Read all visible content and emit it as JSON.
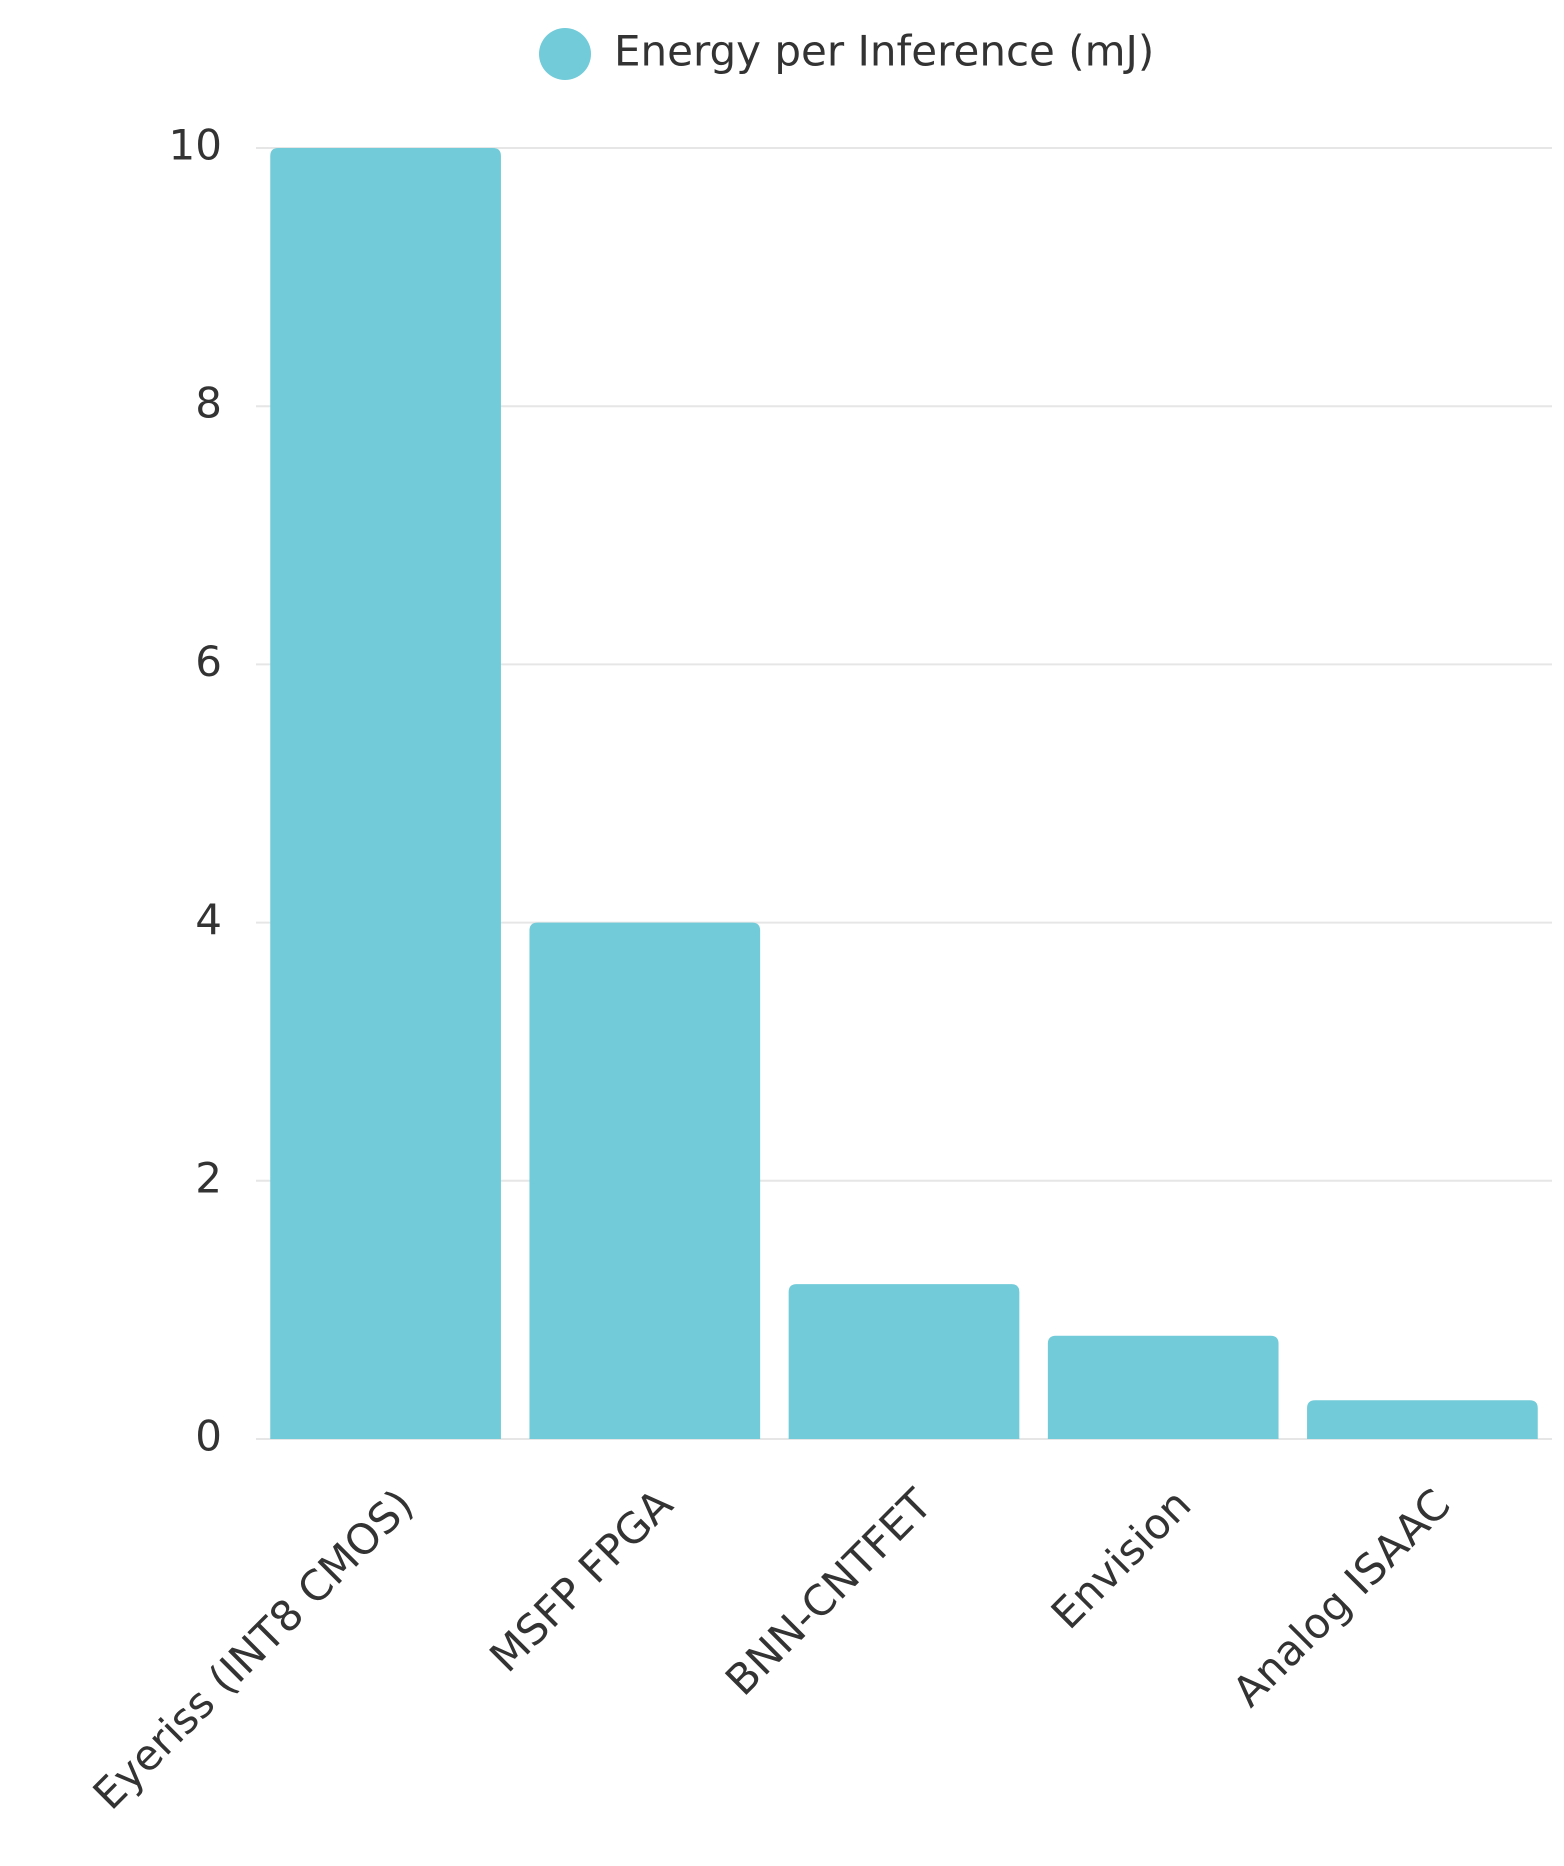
{
  "chart_data": {
    "type": "bar",
    "legend": "Energy per Inference (mJ)",
    "categories": [
      "Eyeriss (INT8 CMOS)",
      "MSFP FPGA",
      "BNN-CNTFET",
      "Envision",
      "Analog ISAAC"
    ],
    "values": [
      10,
      4,
      1.2,
      0.8,
      0.3
    ],
    "color": "#72cbd9",
    "ylim": [
      0,
      10
    ],
    "yticks": [
      0,
      2,
      4,
      6,
      8,
      10
    ],
    "grid": true
  }
}
